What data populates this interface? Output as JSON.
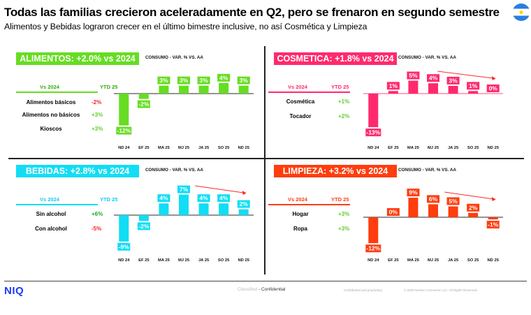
{
  "header": {
    "title": "Todas las familias crecieron aceleradamente en Q2, pero se frenaron en segundo semestre",
    "subtitle": "Alimentos y Bebidas lograron crecer en el último bimestre inclusive, no así Cosmética y Limpieza",
    "flag_icon": "argentina-flag-icon"
  },
  "footer": {
    "logo": "NIQ",
    "classified_prefix": "Classified",
    "classified_level": "- Confidential",
    "confidential_text": "Confidential and proprietary",
    "copyright": "© 2020 Nielsen Consumer LLC. All Rights Reserved."
  },
  "panels": [
    {
      "key": "alimentos",
      "title": "ALIMENTOS: +2.0% vs 2024",
      "color": "#66dd22",
      "baseline_color": "#555555",
      "table": {
        "col1": "Vs 2024",
        "col2": "YTD 25",
        "header_color": "#33aa11",
        "rows": [
          {
            "label": "Alimentos básicos",
            "value": "-2%",
            "color": "#ff2222"
          },
          {
            "label": "Alimentos no básicos",
            "value": "+3%",
            "color": "#66cc33"
          },
          {
            "label": "Kioscos",
            "value": "+3%",
            "color": "#66cc33"
          }
        ]
      },
      "trend_arrow": false
    },
    {
      "key": "cosmetica",
      "title": "COSMETICA: +1.8% vs 2024",
      "color": "#ff2a6d",
      "baseline_color": "#ff6fa0",
      "table": {
        "col1": "Vs 2024",
        "col2": "YTD 25",
        "header_color": "#ff2a6d",
        "rows": [
          {
            "label": "Cosmética",
            "value": "+1%",
            "color": "#66cc33"
          },
          {
            "label": "Tocador",
            "value": "+2%",
            "color": "#66cc33"
          }
        ]
      },
      "trend_arrow": true
    },
    {
      "key": "bebidas",
      "title": "BEBIDAS: +2.8% vs 2024",
      "color": "#11ddf5",
      "baseline_color": "#555555",
      "table": {
        "col1": "Vs 2024",
        "col2": "YTD 25",
        "header_color": "#11ccee",
        "rows": [
          {
            "label": "Sin alcohol",
            "value": "+6%",
            "color": "#22aa22"
          },
          {
            "label": "Con alcohol",
            "value": "-5%",
            "color": "#ff2222"
          }
        ]
      },
      "trend_arrow": true
    },
    {
      "key": "limpieza",
      "title": "LIMPIEZA: +3.2% vs 2024",
      "color": "#ff3d0d",
      "baseline_color": "#555555",
      "table": {
        "col1": "Vs 2024",
        "col2": "YTD 25",
        "header_color": "#ff3d0d",
        "rows": [
          {
            "label": "Hogar",
            "value": "+3%",
            "color": "#66cc33"
          },
          {
            "label": "Ropa",
            "value": "+3%",
            "color": "#66cc33"
          }
        ]
      },
      "trend_arrow": true
    }
  ],
  "chart_data": [
    {
      "type": "bar",
      "title": "CONSUMO - VAR. % VS. AA",
      "panel": "ALIMENTOS",
      "categories": [
        "ND 24",
        "EF 25",
        "MA 25",
        "MJ 25",
        "JA 25",
        "SO 25",
        "ND 25"
      ],
      "values": [
        -12,
        -2,
        3,
        3,
        3,
        4,
        3
      ],
      "labels": [
        "-12%",
        "-2%",
        "3%",
        "3%",
        "3%",
        "4%",
        "3%"
      ],
      "xlabel": "",
      "ylabel": ""
    },
    {
      "type": "bar",
      "title": "CONSUMO - VAR. % VS. AA",
      "panel": "COSMETICA",
      "categories": [
        "ND 24",
        "EF 25",
        "MA 25",
        "MJ 25",
        "JA 25",
        "SO 25",
        "ND 25"
      ],
      "values": [
        -13,
        1,
        5,
        4,
        3,
        1,
        0
      ],
      "labels": [
        "-13%",
        "1%",
        "5%",
        "4%",
        "3%",
        "1%",
        "0%"
      ],
      "xlabel": "",
      "ylabel": ""
    },
    {
      "type": "bar",
      "title": "CONSUMO - VAR. % VS. AA",
      "panel": "BEBIDAS",
      "categories": [
        "ND 24",
        "EF 25",
        "MA 25",
        "MJ 25",
        "JA 25",
        "SO 25",
        "ND 25"
      ],
      "values": [
        -9,
        -2,
        4,
        7,
        4,
        4,
        2
      ],
      "labels": [
        "-9%",
        "-2%",
        "4%",
        "7%",
        "4%",
        "4%",
        "2%"
      ],
      "xlabel": "",
      "ylabel": ""
    },
    {
      "type": "bar",
      "title": "CONSUMO - VAR. % VS. AA",
      "panel": "LIMPIEZA",
      "categories": [
        "ND 24",
        "EF 25",
        "MA 25",
        "MJ 25",
        "JA 25",
        "SO 25",
        "ND 25"
      ],
      "values": [
        -12,
        0,
        9,
        6,
        5,
        2,
        -1
      ],
      "labels": [
        "-12%",
        "0%",
        "9%",
        "6%",
        "5%",
        "2%",
        "-1%"
      ],
      "xlabel": "",
      "ylabel": ""
    }
  ]
}
